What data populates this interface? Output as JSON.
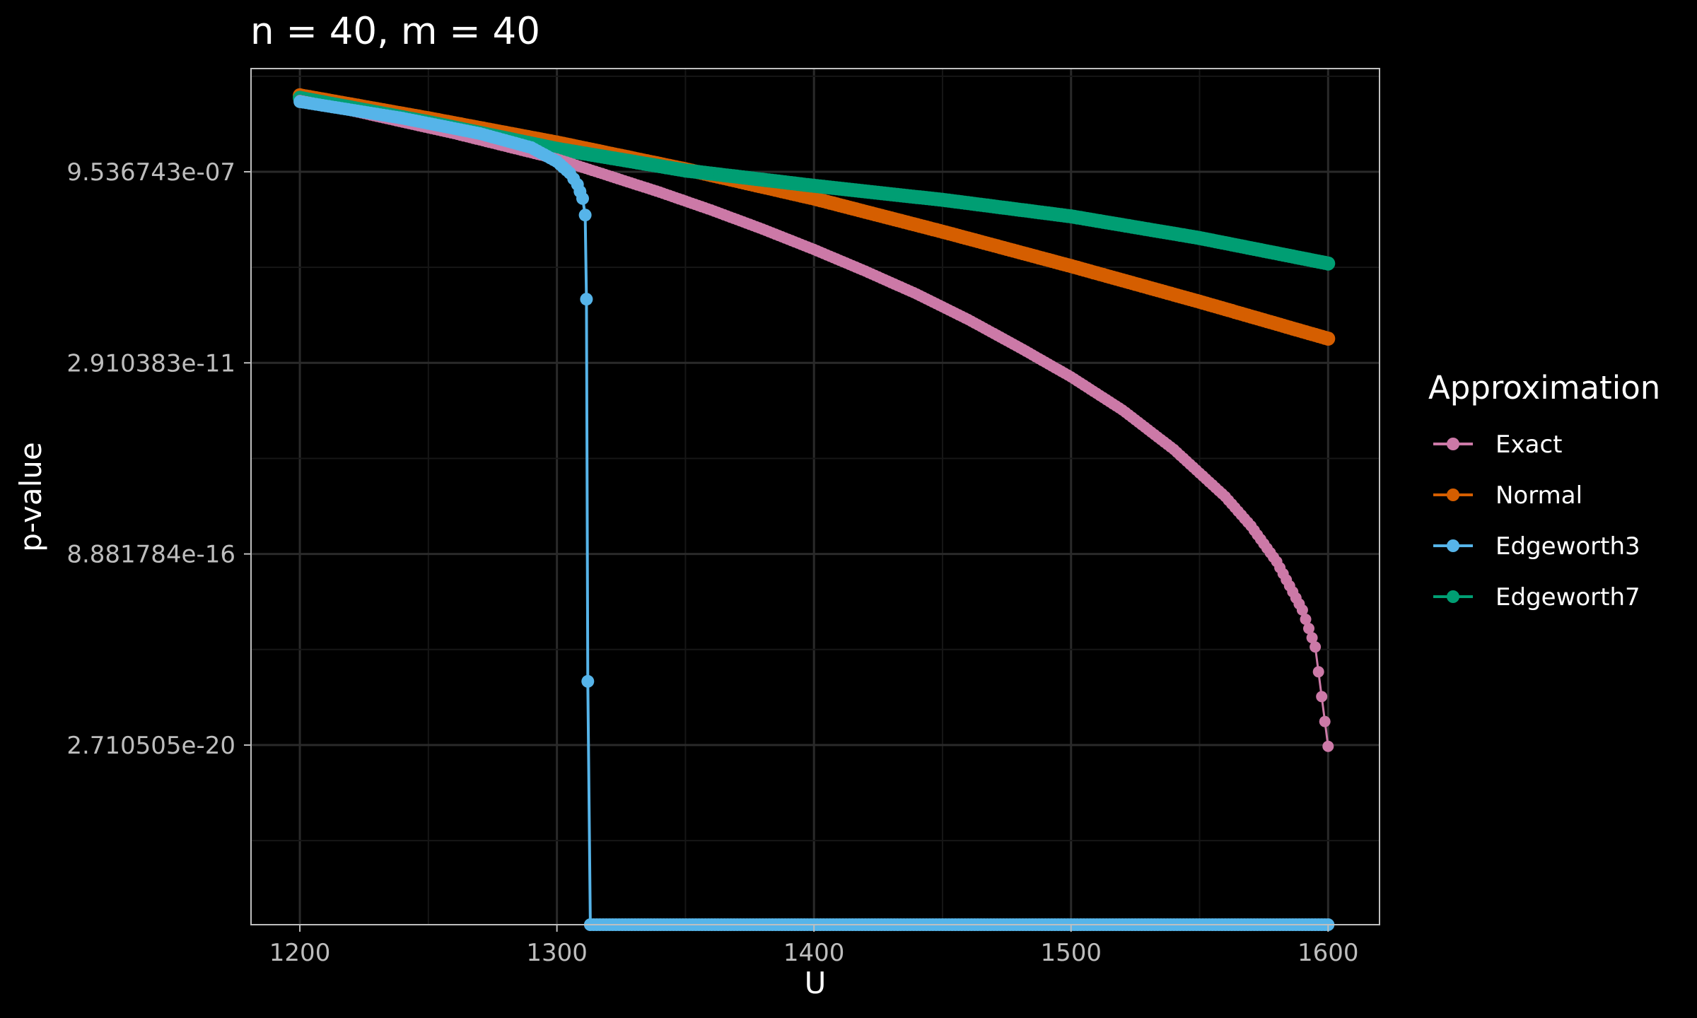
{
  "chart_data": {
    "type": "line",
    "title": "n = 40, m = 40",
    "xlabel": "U",
    "ylabel": "p-value",
    "y_scale": "log2",
    "xlim": [
      1181,
      1620
    ],
    "x_ticks": [
      1200,
      1300,
      1400,
      1500,
      1600
    ],
    "x_tick_labels": [
      "1200",
      "1300",
      "1400",
      "1500",
      "1600"
    ],
    "ylim_log2": [
      -79.1,
      -11.9
    ],
    "y_ticks_log2": [
      -20,
      -35,
      -50,
      -65
    ],
    "y_tick_labels": [
      "9.536743e-07",
      "2.910383e-11",
      "8.881784e-16",
      "2.710505e-20"
    ],
    "grid": true,
    "legend": {
      "title": "Approximation",
      "position": "right",
      "entries": [
        "Exact",
        "Normal",
        "Edgeworth3",
        "Edgeworth7"
      ]
    },
    "colors": {
      "background": "#000000",
      "panel_border": "#bfbfbf",
      "grid_major": "#2a2a2a",
      "grid_minor": "#161616",
      "Exact": "#CC79A7",
      "Normal": "#D55E00",
      "Edgeworth3": "#56B4E9",
      "Edgeworth7": "#009E73"
    },
    "series": [
      {
        "name": "Exact",
        "x": [
          1200,
          1220,
          1240,
          1260,
          1280,
          1300,
          1320,
          1340,
          1360,
          1380,
          1400,
          1420,
          1440,
          1460,
          1480,
          1500,
          1520,
          1540,
          1560,
          1570,
          1580,
          1590,
          1595,
          1600
        ],
        "log2y": [
          -14.4,
          -15.2,
          -16.1,
          -17.0,
          -18.0,
          -19.0,
          -20.3,
          -21.6,
          -23.0,
          -24.5,
          -26.1,
          -27.8,
          -29.6,
          -31.6,
          -33.8,
          -36.1,
          -38.7,
          -41.8,
          -45.5,
          -47.8,
          -50.6,
          -54.4,
          -57.3,
          -65.1
        ]
      },
      {
        "name": "Normal",
        "x": [
          1200,
          1250,
          1300,
          1350,
          1400,
          1450,
          1500,
          1550,
          1600
        ],
        "log2y": [
          -14.0,
          -15.8,
          -17.7,
          -19.8,
          -22.1,
          -24.7,
          -27.4,
          -30.2,
          -33.1
        ]
      },
      {
        "name": "Edgeworth3",
        "x": [
          1200,
          1240,
          1270,
          1290,
          1300,
          1305,
          1308,
          1310,
          1311,
          1311.5,
          1312,
          1313,
          1400,
          1500,
          1600
        ],
        "log2y": [
          -14.5,
          -15.8,
          -17.0,
          -18.1,
          -19.2,
          -20.1,
          -21.0,
          -22.1,
          -23.4,
          -30.0,
          -60.0,
          -79.1,
          -79.1,
          -79.1,
          -79.1
        ]
      },
      {
        "name": "Edgeworth7",
        "x": [
          1200,
          1250,
          1300,
          1350,
          1400,
          1450,
          1500,
          1550,
          1600
        ],
        "log2y": [
          -14.2,
          -16.1,
          -18.2,
          -19.9,
          -21.1,
          -22.2,
          -23.5,
          -25.2,
          -27.2
        ]
      }
    ]
  }
}
